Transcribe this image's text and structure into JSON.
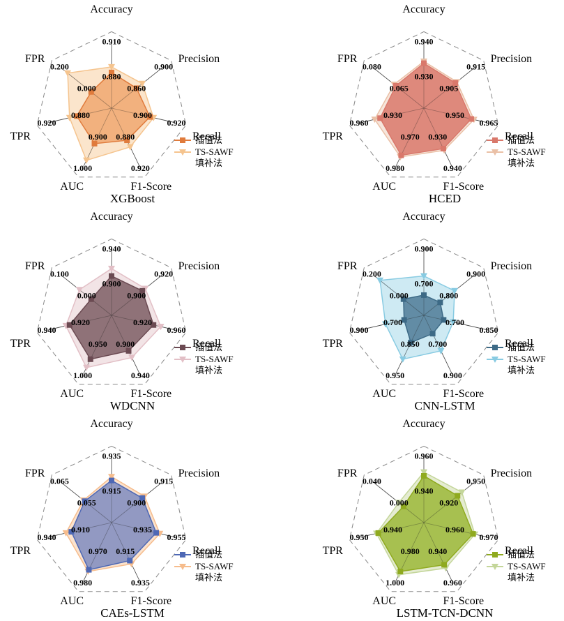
{
  "figure": {
    "axis_labels": [
      "Accuracy",
      "Precision",
      "Recall",
      "F1-Score",
      "AUC",
      "TPR",
      "FPR"
    ],
    "legend": [
      "插值法",
      "TS-SAWF\n填补法"
    ]
  },
  "chart_data": [
    {
      "type": "radar",
      "title": "XGBoost",
      "grid": true,
      "legend_position": "right",
      "axes": [
        "Accuracy",
        "Precision",
        "Recall",
        "F1-Score",
        "AUC",
        "TPR",
        "FPR"
      ],
      "series": [
        {
          "name": "插值法",
          "color": "#E07B3C",
          "fill": "#F0A870",
          "values": [
            0.88,
            0.86,
            0.9,
            0.88,
            0.9,
            0.88,
            0.0
          ],
          "labels": [
            "0.880",
            "0.860",
            "0.900",
            "0.880",
            "0.900",
            "0.880",
            "0.000"
          ]
        },
        {
          "name": "TS-SAWF 填补法",
          "color": "#F5C48E",
          "fill": "#F8CFA3",
          "values": [
            0.91,
            0.9,
            0.92,
            0.92,
            1.0,
            0.92,
            0.2
          ],
          "labels": [
            "0.910",
            "0.900",
            "0.920",
            "0.920",
            "1.000",
            "0.920",
            "0.200"
          ]
        }
      ]
    },
    {
      "type": "radar",
      "title": "HCED",
      "grid": true,
      "legend_position": "right",
      "axes": [
        "Accuracy",
        "Precision",
        "Recall",
        "F1-Score",
        "AUC",
        "TPR",
        "FPR"
      ],
      "series": [
        {
          "name": "插值法",
          "color": "#D9786B",
          "fill": "#D9786B",
          "values": [
            0.93,
            0.905,
            0.95,
            0.93,
            0.97,
            0.93,
            0.065
          ],
          "labels": [
            "0.930",
            "0.905",
            "0.950",
            "0.930",
            "0.970",
            "0.930",
            "0.065"
          ]
        },
        {
          "name": "TS-SAWF 填补法",
          "color": "#EAC0A6",
          "fill": "#EFD2BF",
          "values": [
            0.94,
            0.915,
            0.965,
            0.94,
            0.98,
            0.96,
            0.08
          ],
          "labels": [
            "0.940",
            "0.915",
            "0.965",
            "0.940",
            "0.980",
            "0.960",
            "0.080"
          ]
        }
      ]
    },
    {
      "type": "radar",
      "title": "WDCNN",
      "grid": true,
      "legend_position": "right",
      "axes": [
        "Accuracy",
        "Precision",
        "Recall",
        "F1-Score",
        "AUC",
        "TPR",
        "FPR"
      ],
      "series": [
        {
          "name": "插值法",
          "color": "#6B4A52",
          "fill": "#7E5E64",
          "values": [
            0.9,
            0.9,
            0.92,
            0.9,
            0.95,
            0.92,
            0.0
          ],
          "labels": [
            "0.900",
            "0.900",
            "0.920",
            "0.900",
            "0.950",
            "0.920",
            "0.000"
          ]
        },
        {
          "name": "TS-SAWF 填补法",
          "color": "#E2BFC6",
          "fill": "#E8CDD2",
          "values": [
            0.94,
            0.92,
            0.96,
            0.94,
            1.0,
            0.94,
            0.1
          ],
          "labels": [
            "0.940",
            "0.920",
            "0.960",
            "0.940",
            "1.000",
            "0.940",
            "0.100"
          ]
        }
      ]
    },
    {
      "type": "radar",
      "title": "CNN-LSTM",
      "grid": true,
      "legend_position": "right",
      "axes": [
        "Accuracy",
        "Precision",
        "Recall",
        "F1-Score",
        "AUC",
        "TPR",
        "FPR"
      ],
      "series": [
        {
          "name": "插值法",
          "color": "#3D6A86",
          "fill": "#4F7B96",
          "values": [
            0.7,
            0.8,
            0.7,
            0.7,
            0.85,
            0.7,
            0.0
          ],
          "labels": [
            "0.700",
            "0.800",
            "0.700",
            "0.700",
            "0.850",
            "0.700",
            "0.000"
          ]
        },
        {
          "name": "TS-SAWF 填补法",
          "color": "#88CBE2",
          "fill": "#A6D9EA",
          "values": [
            0.9,
            0.9,
            0.85,
            0.9,
            0.95,
            0.9,
            0.2
          ],
          "labels": [
            "0.900",
            "0.900",
            "0.850",
            "0.900",
            "0.950",
            "0.900",
            "0.200"
          ]
        }
      ]
    },
    {
      "type": "radar",
      "title": "CAEs-LSTM",
      "grid": true,
      "legend_position": "right",
      "axes": [
        "Accuracy",
        "Precision",
        "Recall",
        "F1-Score",
        "AUC",
        "TPR",
        "FPR"
      ],
      "series": [
        {
          "name": "插值法",
          "color": "#4E68B5",
          "fill": "#7F8CC0",
          "values": [
            0.915,
            0.9,
            0.935,
            0.915,
            0.97,
            0.91,
            0.055
          ],
          "labels": [
            "0.915",
            "0.900",
            "0.935",
            "0.915",
            "0.970",
            "0.910",
            "0.055"
          ]
        },
        {
          "name": "TS-SAWF 填补法",
          "color": "#F6BC8C",
          "fill": "#F8CCA6",
          "values": [
            0.935,
            0.915,
            0.955,
            0.935,
            0.98,
            0.94,
            0.065
          ],
          "labels": [
            "0.935",
            "0.915",
            "0.955",
            "0.935",
            "0.980",
            "0.940",
            "0.065"
          ]
        }
      ]
    },
    {
      "type": "radar",
      "title": "LSTM-TCN-DCNN",
      "grid": true,
      "legend_position": "right",
      "axes": [
        "Accuracy",
        "Precision",
        "Recall",
        "F1-Score",
        "AUC",
        "TPR",
        "FPR"
      ],
      "series": [
        {
          "name": "插值法",
          "color": "#8FAA1F",
          "fill": "#9CB83A",
          "values": [
            0.94,
            0.92,
            0.96,
            0.94,
            0.98,
            0.94,
            0.0
          ],
          "labels": [
            "0.940",
            "0.920",
            "0.960",
            "0.940",
            "0.980",
            "0.940",
            "0.000"
          ]
        },
        {
          "name": "TS-SAWF 填补法",
          "color": "#C4D69A",
          "fill": "#CFDDAD",
          "values": [
            0.96,
            0.95,
            0.97,
            0.96,
            1.0,
            0.95,
            0.04
          ],
          "labels": [
            "0.960",
            "0.950",
            "0.970",
            "0.960",
            "1.000",
            "0.950",
            "0.040"
          ]
        }
      ]
    }
  ]
}
